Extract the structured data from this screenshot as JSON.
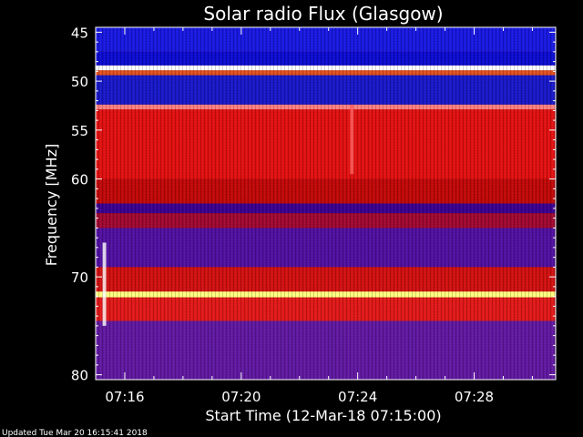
{
  "chart_data": {
    "type": "heatmap",
    "title": "Solar radio Flux (Glasgow)",
    "xlabel": "Start Time (12-Mar-18 07:15:00)",
    "ylabel": "Frequency [MHz]",
    "y_axis": {
      "ticks": [
        "45",
        "50",
        "55",
        "60",
        "70",
        "80"
      ],
      "tick_values": [
        45,
        50,
        55,
        60,
        70,
        80
      ],
      "range": [
        44.5,
        80.5
      ],
      "inverted": true
    },
    "x_axis": {
      "ticks": [
        "07:16",
        "07:20",
        "07:24",
        "07:28"
      ],
      "tick_values_min": [
        16,
        20,
        24,
        28
      ],
      "range_min": [
        15.0,
        30.8
      ]
    },
    "colors": {
      "background": "#8a0000",
      "blue": "#00008f",
      "blue_bright": "#1010e8",
      "red": "#e81010",
      "red_dim": "#b00000",
      "yellow": "#ffff60",
      "white": "#ffffff"
    },
    "bands": [
      {
        "from": 44.5,
        "to": 47.0,
        "color": "#1818e0"
      },
      {
        "from": 47.0,
        "to": 48.4,
        "color": "#0c0cd0"
      },
      {
        "from": 48.4,
        "to": 48.9,
        "color": "#ffffff"
      },
      {
        "from": 48.9,
        "to": 49.4,
        "color": "#e05020"
      },
      {
        "from": 49.4,
        "to": 52.4,
        "color": "#1818c8"
      },
      {
        "from": 52.4,
        "to": 52.9,
        "color": "#ff8080"
      },
      {
        "from": 52.9,
        "to": 60.0,
        "color": "#e01010"
      },
      {
        "from": 60.0,
        "to": 62.5,
        "color": "#c00808"
      },
      {
        "from": 62.5,
        "to": 63.5,
        "color": "#3a0090"
      },
      {
        "from": 63.5,
        "to": 65.0,
        "color": "#a00830"
      },
      {
        "from": 65.0,
        "to": 69.0,
        "color": "#5010a0"
      },
      {
        "from": 69.0,
        "to": 71.5,
        "color": "#d01010"
      },
      {
        "from": 71.5,
        "to": 72.1,
        "color": "#ffff80"
      },
      {
        "from": 72.1,
        "to": 74.5,
        "color": "#e01818"
      },
      {
        "from": 74.5,
        "to": 80.5,
        "color": "#6018a0"
      }
    ],
    "features": [
      {
        "name": "burst-vertical-0724",
        "x_min": 23.8,
        "freq_from": 52.4,
        "freq_to": 59.5,
        "color": "#ff6060"
      },
      {
        "name": "interference-0715",
        "x_min": 15.3,
        "freq_from": 66.5,
        "freq_to": 75.0,
        "color": "#ffffff"
      }
    ]
  },
  "footer": {
    "updated": "Updated Tue Mar 20 16:15:41 2018"
  }
}
